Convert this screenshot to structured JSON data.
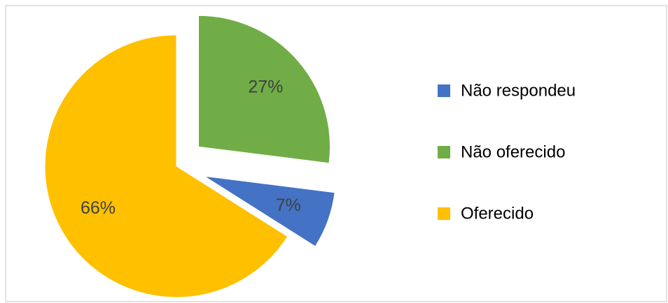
{
  "chart_data": {
    "type": "pie",
    "categories": [
      "Não respondeu",
      "Não oferecido",
      "Oferecido"
    ],
    "values": [
      7,
      27,
      66
    ],
    "value_labels": [
      "7%",
      "27%",
      "66%"
    ],
    "colors": [
      "#4472c4",
      "#70ad47",
      "#ffc000"
    ],
    "legend": "right"
  }
}
